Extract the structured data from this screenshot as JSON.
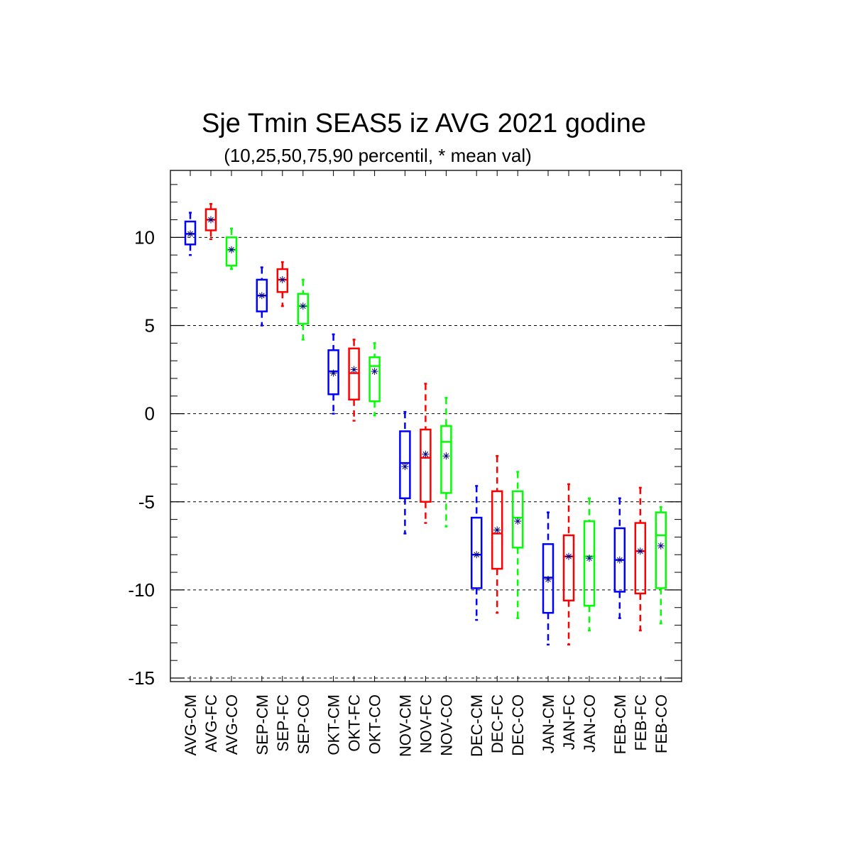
{
  "chart_data": {
    "type": "boxplot",
    "title": "Sje Tmin SEAS5 iz AVG 2021 godine",
    "subtitle": "(10,25,50,75,90 percentil, * mean val)",
    "ylim": [
      -15.2,
      13.8
    ],
    "yticks": [
      10,
      5,
      0,
      -5,
      -10,
      -15
    ],
    "grid": "horizontal dashed at major ticks",
    "colors": {
      "CM": "#0000ff",
      "FC": "#ff0000",
      "CO": "#00ff00",
      "mean_marker": "#000080"
    },
    "categories": [
      "AVG-CM",
      "AVG-FC",
      "AVG-CO",
      "SEP-CM",
      "SEP-FC",
      "SEP-CO",
      "OKT-CM",
      "OKT-FC",
      "OKT-CO",
      "NOV-CM",
      "NOV-FC",
      "NOV-CO",
      "DEC-CM",
      "DEC-FC",
      "DEC-CO",
      "JAN-CM",
      "JAN-FC",
      "JAN-CO",
      "FEB-CM",
      "FEB-FC",
      "FEB-CO"
    ],
    "boxes": [
      {
        "label": "AVG-CM",
        "kind": "CM",
        "p10": 9.0,
        "p25": 9.6,
        "p50": 10.2,
        "p75": 10.9,
        "p90": 11.4,
        "mean": 10.2
      },
      {
        "label": "AVG-FC",
        "kind": "FC",
        "p10": 9.9,
        "p25": 10.4,
        "p50": 11.0,
        "p75": 11.6,
        "p90": 11.9,
        "mean": 11.0
      },
      {
        "label": "AVG-CO",
        "kind": "CO",
        "p10": 8.2,
        "p25": 8.4,
        "p50": 9.3,
        "p75": 10.0,
        "p90": 10.5,
        "mean": 9.3
      },
      {
        "label": "SEP-CM",
        "kind": "CM",
        "p10": 5.0,
        "p25": 5.8,
        "p50": 6.7,
        "p75": 7.6,
        "p90": 8.3,
        "mean": 6.7
      },
      {
        "label": "SEP-FC",
        "kind": "FC",
        "p10": 6.1,
        "p25": 6.9,
        "p50": 7.6,
        "p75": 8.2,
        "p90": 8.6,
        "mean": 7.6
      },
      {
        "label": "SEP-CO",
        "kind": "CO",
        "p10": 4.2,
        "p25": 5.1,
        "p50": 6.1,
        "p75": 6.8,
        "p90": 7.6,
        "mean": 6.1
      },
      {
        "label": "OKT-CM",
        "kind": "CM",
        "p10": 0.0,
        "p25": 1.1,
        "p50": 2.4,
        "p75": 3.6,
        "p90": 4.5,
        "mean": 2.3
      },
      {
        "label": "OKT-FC",
        "kind": "FC",
        "p10": -0.4,
        "p25": 0.8,
        "p50": 2.3,
        "p75": 3.7,
        "p90": 4.2,
        "mean": 2.5
      },
      {
        "label": "OKT-CO",
        "kind": "CO",
        "p10": -0.1,
        "p25": 0.7,
        "p50": 2.7,
        "p75": 3.2,
        "p90": 4.0,
        "mean": 2.4
      },
      {
        "label": "NOV-CM",
        "kind": "CM",
        "p10": -6.8,
        "p25": -4.8,
        "p50": -2.8,
        "p75": -1.0,
        "p90": 0.1,
        "mean": -3.0
      },
      {
        "label": "NOV-FC",
        "kind": "FC",
        "p10": -6.2,
        "p25": -5.0,
        "p50": -2.5,
        "p75": -0.9,
        "p90": 1.7,
        "mean": -2.3
      },
      {
        "label": "NOV-CO",
        "kind": "CO",
        "p10": -6.4,
        "p25": -4.5,
        "p50": -1.6,
        "p75": -0.7,
        "p90": 0.9,
        "mean": -2.4
      },
      {
        "label": "DEC-CM",
        "kind": "CM",
        "p10": -11.7,
        "p25": -9.9,
        "p50": -8.0,
        "p75": -5.9,
        "p90": -4.1,
        "mean": -8.0
      },
      {
        "label": "DEC-FC",
        "kind": "FC",
        "p10": -11.3,
        "p25": -8.8,
        "p50": -6.8,
        "p75": -4.4,
        "p90": -2.4,
        "mean": -6.6
      },
      {
        "label": "DEC-CO",
        "kind": "CO",
        "p10": -11.6,
        "p25": -7.6,
        "p50": -5.9,
        "p75": -4.4,
        "p90": -3.3,
        "mean": -6.1
      },
      {
        "label": "JAN-CM",
        "kind": "CM",
        "p10": -13.1,
        "p25": -11.3,
        "p50": -9.3,
        "p75": -7.4,
        "p90": -5.6,
        "mean": -9.4
      },
      {
        "label": "JAN-FC",
        "kind": "FC",
        "p10": -13.1,
        "p25": -10.6,
        "p50": -8.1,
        "p75": -6.9,
        "p90": -4.0,
        "mean": -8.1
      },
      {
        "label": "JAN-CO",
        "kind": "CO",
        "p10": -12.3,
        "p25": -10.9,
        "p50": -8.1,
        "p75": -6.1,
        "p90": -4.8,
        "mean": -8.2
      },
      {
        "label": "FEB-CM",
        "kind": "CM",
        "p10": -11.6,
        "p25": -10.1,
        "p50": -8.3,
        "p75": -6.5,
        "p90": -4.8,
        "mean": -8.3
      },
      {
        "label": "FEB-FC",
        "kind": "FC",
        "p10": -12.3,
        "p25": -10.2,
        "p50": -7.8,
        "p75": -6.2,
        "p90": -4.2,
        "mean": -7.8
      },
      {
        "label": "FEB-CO",
        "kind": "CO",
        "p10": -11.9,
        "p25": -9.9,
        "p50": -6.9,
        "p75": -5.6,
        "p90": -5.3,
        "mean": -7.5
      }
    ]
  }
}
